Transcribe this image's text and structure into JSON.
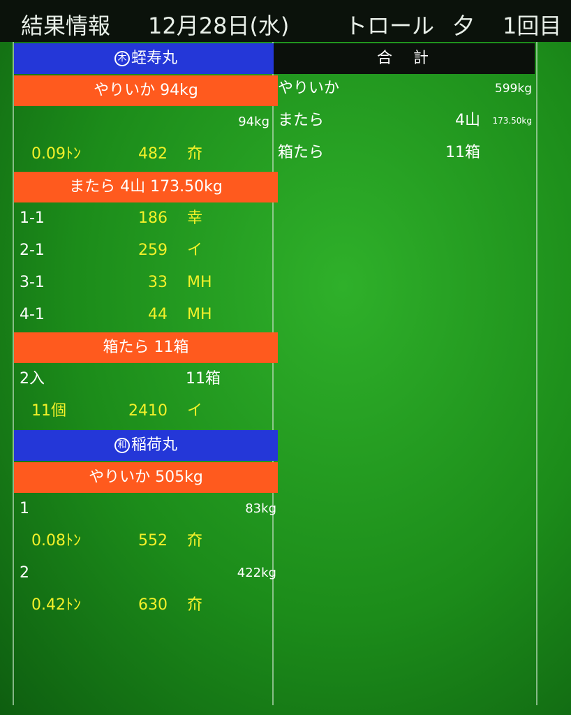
{
  "header": {
    "parts": [
      "結果情報",
      "12月28日(水)",
      "トロール",
      "夕",
      "1回目"
    ]
  },
  "ships": [
    {
      "mark": "木",
      "name": "蛭寿丸",
      "sections": [
        {
          "title": "やりいか 94kg",
          "rows": [
            {
              "amount": "94kg"
            },
            {
              "tons": "0.09ﾄﾝ",
              "price": "482",
              "mark": "夼"
            }
          ]
        },
        {
          "title": "またら 4山 173.50kg",
          "rows": [
            {
              "lot": "1-1",
              "price": "186",
              "mark": "幸"
            },
            {
              "lot": "2-1",
              "price": "259",
              "mark": "イ"
            },
            {
              "lot": "3-1",
              "price": "33",
              "mark": "MH"
            },
            {
              "lot": "4-1",
              "price": "44",
              "mark": "MH"
            }
          ]
        },
        {
          "title": "箱たら 11箱",
          "rows": [
            {
              "lot": "2入",
              "count": "11箱"
            },
            {
              "tons": "11個",
              "price": "2410",
              "mark": "イ"
            }
          ]
        }
      ]
    },
    {
      "mark": "和",
      "name": "稲荷丸",
      "sections": [
        {
          "title": "やりいか 505kg",
          "rows": [
            {
              "lot": "1",
              "amount": "83kg"
            },
            {
              "tons": "0.08ﾄﾝ",
              "price": "552",
              "mark": "夼"
            },
            {
              "lot": "2",
              "amount": "422kg"
            },
            {
              "tons": "0.42ﾄﾝ",
              "price": "630",
              "mark": "夼"
            }
          ]
        }
      ]
    }
  ],
  "totals": {
    "title": "合　計",
    "rows": [
      {
        "lot": "やりいか",
        "amount": "599kg"
      },
      {
        "lot": "またら",
        "count": "4山",
        "amount": "173.50kg"
      },
      {
        "lot": "箱たら",
        "count": "11箱"
      }
    ]
  }
}
